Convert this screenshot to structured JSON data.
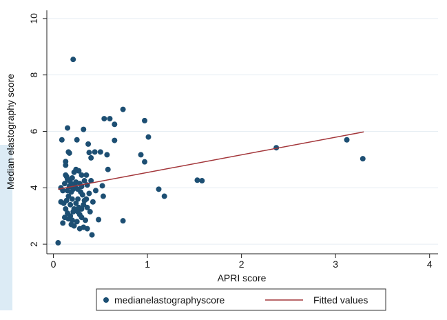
{
  "chart_data": {
    "type": "scatter",
    "x_label": "APRI score",
    "y_label": "Median elastography score",
    "xlim": [
      -0.07,
      4.09
    ],
    "ylim": [
      1.66,
      10.29
    ],
    "xticks": [
      0,
      1,
      2,
      3,
      4
    ],
    "yticks": [
      2,
      4,
      6,
      8,
      10
    ],
    "grid": true,
    "legend": "bottom",
    "series": [
      {
        "name": "medianelastographyscore",
        "color": "#1d4f73",
        "x": [
          0.21,
          0.05,
          0.74,
          0.54,
          0.6,
          0.65,
          0.97,
          1.01,
          0.93,
          0.97,
          0.65,
          0.57,
          0.58,
          1.12,
          1.18,
          1.53,
          1.58,
          2.37,
          3.12,
          3.29,
          0.74,
          0.48,
          0.41,
          0.52,
          0.53,
          0.5,
          0.44,
          0.38,
          0.37,
          0.4,
          0.32,
          0.25,
          0.15,
          0.09,
          0.16,
          0.17,
          0.13,
          0.13,
          0.08,
          0.1,
          0.12,
          0.14,
          0.15,
          0.17,
          0.2,
          0.22,
          0.24,
          0.27,
          0.3,
          0.33,
          0.36,
          0.4,
          0.38,
          0.35,
          0.32,
          0.3,
          0.28,
          0.25,
          0.22,
          0.2,
          0.18,
          0.15,
          0.12,
          0.1,
          0.08,
          0.11,
          0.14,
          0.16,
          0.19,
          0.21,
          0.23,
          0.26,
          0.29,
          0.31,
          0.33,
          0.36,
          0.39,
          0.42,
          0.45,
          0.18,
          0.2,
          0.22,
          0.24,
          0.26,
          0.27,
          0.3,
          0.32,
          0.34,
          0.36,
          0.28,
          0.16,
          0.19,
          0.13,
          0.17,
          0.24,
          0.28,
          0.35,
          0.3,
          0.19,
          0.15,
          0.21,
          0.26,
          0.13
        ],
        "values": [
          8.55,
          2.05,
          6.78,
          6.45,
          6.45,
          6.25,
          6.38,
          5.8,
          5.17,
          4.92,
          5.68,
          5.17,
          4.65,
          3.95,
          3.7,
          4.27,
          4.25,
          5.42,
          5.7,
          5.03,
          2.83,
          2.87,
          2.33,
          4.07,
          3.7,
          5.27,
          5.27,
          5.25,
          5.55,
          5.06,
          6.07,
          5.7,
          6.12,
          5.7,
          5.27,
          5.23,
          4.93,
          4.8,
          4.0,
          3.9,
          4.15,
          4.4,
          4.3,
          4.25,
          4.35,
          4.55,
          4.65,
          4.6,
          4.45,
          4.25,
          4.1,
          4.25,
          3.8,
          3.6,
          3.4,
          3.25,
          3.05,
          2.8,
          2.65,
          2.85,
          3.0,
          3.1,
          2.95,
          2.75,
          3.5,
          3.45,
          3.55,
          3.7,
          3.85,
          3.95,
          4.05,
          3.95,
          3.85,
          3.75,
          3.55,
          3.3,
          3.15,
          3.5,
          3.9,
          3.4,
          3.6,
          3.25,
          3.45,
          3.6,
          3.3,
          2.95,
          2.6,
          2.85,
          2.55,
          2.55,
          2.9,
          2.7,
          3.25,
          4.05,
          4.2,
          4.15,
          4.45,
          4.05,
          4.15,
          3.9,
          3.15,
          3.15,
          4.45
        ]
      },
      {
        "name": "Fitted values",
        "color": "#a3363a",
        "type": "line",
        "x": [
          0.05,
          3.3
        ],
        "values": [
          3.95,
          5.98
        ]
      }
    ]
  }
}
